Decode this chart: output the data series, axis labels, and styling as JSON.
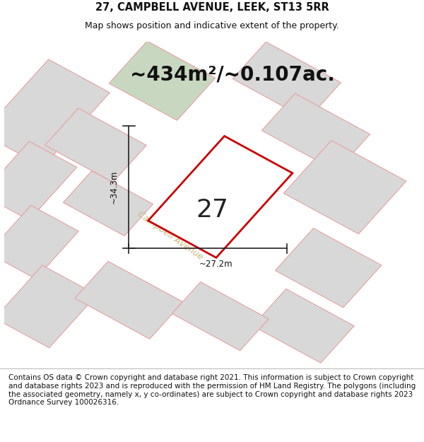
{
  "title": "27, CAMPBELL AVENUE, LEEK, ST13 5RR",
  "subtitle": "Map shows position and indicative extent of the property.",
  "area_text": "~434m²/~0.107ac.",
  "label_27": "27",
  "dim_width": "~27.2m",
  "dim_height": "~34.3m",
  "street_label": "Campbell Avenue",
  "footer": "Contains OS data © Crown copyright and database right 2021. This information is subject to Crown copyright and database rights 2023 and is reproduced with the permission of HM Land Registry. The polygons (including the associated geometry, namely x, y co-ordinates) are subject to Crown copyright and database rights 2023 Ordnance Survey 100026316.",
  "plot_fill": "#ffffff",
  "plot_edge": "#cc0000",
  "neighbor_fill": "#d8d8d8",
  "neighbor_edge": "#e8a0a0",
  "green_fill": "#c8d8c0",
  "green_edge": "#e8a0a0",
  "dim_line_color": "#222222",
  "street_text_color": "#c8b878",
  "title_fontsize": 10.5,
  "subtitle_fontsize": 9,
  "area_fontsize": 20,
  "label_fontsize": 26,
  "dim_fontsize": 8.5,
  "footer_fontsize": 7.5,
  "street_fontsize": 9
}
